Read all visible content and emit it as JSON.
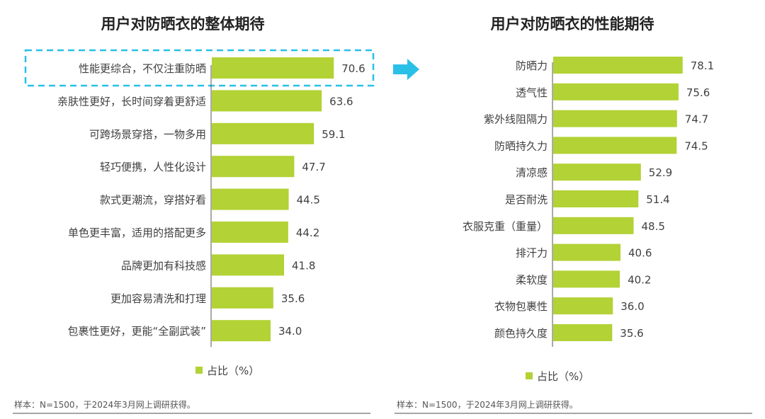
{
  "colors": {
    "bar": "#b2d235",
    "highlight": "#29c0e8",
    "text": "#404040",
    "title": "#222222"
  },
  "chart_data": [
    {
      "type": "bar",
      "orientation": "horizontal",
      "title": "用户对防晒衣的整体期待",
      "legend": "占比（%）",
      "legend_placement": "bottom",
      "categories": [
        "性能更综合，不仅注重防晒",
        "亲肤性更好，长时间穿着更舒适",
        "可跨场景穿搭，一物多用",
        "轻巧便携，人性化设计",
        "款式更潮流，穿搭好看",
        "单色更丰富，适用的搭配更多",
        "品牌更加有科技感",
        "更加容易清洗和打理",
        "包裹性更好，更能“全副武装”"
      ],
      "values": [
        70.6,
        63.6,
        59.1,
        47.7,
        44.5,
        44.2,
        41.8,
        35.6,
        34.0
      ],
      "labels": [
        "70.6",
        "63.6",
        "59.1",
        "47.7",
        "44.5",
        "44.2",
        "41.8",
        "35.6",
        "34.0"
      ],
      "highlighted_category": "性能更综合，不仅注重防晒",
      "xlim": [
        0,
        100
      ],
      "grid": false,
      "note": "样本：N=1500，于2024年3月网上调研获得。"
    },
    {
      "type": "bar",
      "orientation": "horizontal",
      "title": "用户对防晒衣的性能期待",
      "legend": "占比（%）",
      "legend_placement": "bottom",
      "categories": [
        "防晒力",
        "透气性",
        "紫外线阻隔力",
        "防晒持久力",
        "清凉感",
        "是否耐洗",
        "衣服克重（重量）",
        "排汗力",
        "柔软度",
        "衣物包裹性",
        "颜色持久度"
      ],
      "values": [
        78.1,
        75.6,
        74.7,
        74.5,
        52.9,
        51.4,
        48.5,
        40.6,
        40.2,
        36.0,
        35.6
      ],
      "labels": [
        "78.1",
        "75.6",
        "74.7",
        "74.5",
        "52.9",
        "51.4",
        "48.5",
        "40.6",
        "40.2",
        "36.0",
        "35.6"
      ],
      "xlim": [
        0,
        100
      ],
      "grid": false,
      "note": "样本：N=1500，于2024年3月网上调研获得。"
    }
  ],
  "arrow_icon": "right-arrow"
}
